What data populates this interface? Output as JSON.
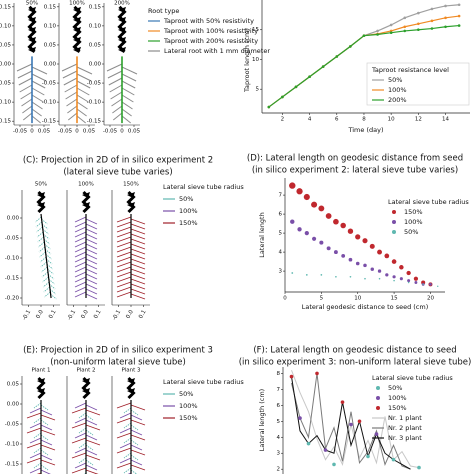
{
  "chart_data": [
    {
      "type": "roots",
      "titles": [
        "50%",
        "100%",
        "200%"
      ],
      "xlim": [
        -0.075,
        0.075
      ],
      "xticks": [
        -0.05,
        0,
        0.05
      ],
      "ylim": [
        -0.16,
        0.16
      ],
      "yticks": [
        0.15,
        {
          "value": 0.1,
          "label": "0.10"
        },
        0.05,
        {
          "value": 0,
          "label": "0.00"
        },
        -0.05,
        {
          "value": -0.1,
          "label": "-0.10"
        },
        -0.15
      ],
      "legend_title": "Root type",
      "series": [
        {
          "name": "Taproot with 50% resistivity",
          "color": "#3a78b5"
        },
        {
          "name": "Taproot with 100% resistivity",
          "color": "#f08a24"
        },
        {
          "name": "Taproot with 200% resistivity",
          "color": "#2ca02c"
        },
        {
          "name": "Lateral root with 1 mm diameter",
          "color": "#8c8c8c"
        }
      ]
    },
    {
      "type": "line",
      "xlabel": "Time (day)",
      "ylabel": "Taproot length (cm)",
      "legend_title": "Taproot resistance level",
      "x": [
        1,
        2,
        3,
        4,
        5,
        6,
        7,
        8,
        9,
        10,
        11,
        12,
        13,
        14,
        15
      ],
      "xlim": [
        0.5,
        15.8
      ],
      "xticks": [
        2,
        4,
        6,
        8,
        10,
        12,
        14
      ],
      "ylim": [
        1,
        20
      ],
      "yticks": [
        5,
        10,
        15
      ],
      "series": [
        {
          "name": "50%",
          "color": "#a0a0a0",
          "values": [
            2,
            3.7,
            5.4,
            7.1,
            8.8,
            10.5,
            12.2,
            14,
            14.8,
            15.8,
            17,
            17.8,
            18.5,
            19,
            19.2
          ]
        },
        {
          "name": "100%",
          "color": "#f08a24",
          "values": [
            2,
            3.7,
            5.4,
            7.1,
            8.8,
            10.5,
            12.2,
            14,
            14.3,
            14.8,
            15.5,
            16,
            16.5,
            17,
            17.3
          ]
        },
        {
          "name": "200%",
          "color": "#2ca02c",
          "values": [
            2,
            3.7,
            5.4,
            7.1,
            8.8,
            10.5,
            12.2,
            14,
            14.2,
            14.5,
            14.8,
            15,
            15.2,
            15.5,
            15.7
          ]
        }
      ]
    },
    {
      "type": "roots2d",
      "title": [
        "(C): Projection in 2D of in silico experiment 2",
        "(lateral sieve tube varies)"
      ],
      "titles": [
        "50%",
        "100%",
        "150%"
      ],
      "xlim": [
        -0.15,
        0.15
      ],
      "xticks": [
        -0.1,
        {
          "value": 0,
          "label": "0.0"
        },
        0.1
      ],
      "ylim": [
        -0.2175,
        0.07
      ],
      "yticks": [
        {
          "value": 0,
          "label": "0.00"
        },
        -0.05,
        {
          "value": -0.1,
          "label": "-0.10"
        },
        -0.15,
        {
          "value": -0.2,
          "label": "-0.20"
        }
      ],
      "legend_title": "Lateral sieve tube radius",
      "series": [
        {
          "name": "50%",
          "color": "#5fb8b0"
        },
        {
          "name": "100%",
          "color": "#7a4fa8"
        },
        {
          "name": "150%",
          "color": "#a0202a"
        }
      ]
    },
    {
      "type": "scatter",
      "title": [
        "(D): Lateral length on geodesic distance from seed",
        "(in silico experiment 2: lateral sieve tube varies)"
      ],
      "xlabel": "Lateral geodesic distance to seed (cm)",
      "ylabel": "Lateral length",
      "xlim": [
        0,
        22
      ],
      "xticks": [
        0,
        5,
        10,
        15,
        20
      ],
      "ylim": [
        1.9,
        7.9
      ],
      "yticks": [
        3,
        4,
        5,
        6,
        7
      ],
      "legend_title": "Lateral sieve tube radius",
      "series": [
        {
          "name": "150%",
          "color": "#c0282e",
          "x": [
            1,
            2,
            3,
            4,
            5,
            6,
            7,
            8,
            9,
            10,
            11,
            12,
            13,
            14,
            15,
            16,
            17,
            18,
            19,
            20
          ],
          "values": [
            7.5,
            7.2,
            6.9,
            6.5,
            6.3,
            5.9,
            5.6,
            5.4,
            5.1,
            4.8,
            4.6,
            4.3,
            4.0,
            3.8,
            3.5,
            3.2,
            2.9,
            2.6,
            2.4,
            2.3
          ]
        },
        {
          "name": "100%",
          "color": "#7a4fa8",
          "x": [
            1,
            2,
            3,
            4,
            5,
            6,
            7,
            8,
            9,
            10,
            11,
            12,
            13,
            14,
            15,
            16,
            17,
            18,
            19,
            20
          ],
          "values": [
            5.6,
            5.2,
            5.0,
            4.7,
            4.5,
            4.2,
            4.0,
            3.8,
            3.6,
            3.4,
            3.3,
            3.1,
            3.0,
            2.8,
            2.7,
            2.6,
            2.5,
            2.4,
            2.3,
            2.3
          ]
        },
        {
          "name": "50%",
          "color": "#5fb8b0",
          "x": [
            1,
            3,
            5,
            7,
            9,
            11,
            13,
            15,
            17,
            19,
            21
          ],
          "values": [
            2.9,
            2.8,
            2.8,
            2.7,
            2.7,
            2.6,
            2.6,
            2.5,
            2.4,
            2.3,
            2.2
          ]
        }
      ]
    },
    {
      "type": "roots2d",
      "title": [
        "(E): Projection in 2D of in silico experiment 3",
        "(non-uniform lateral sieve tube)"
      ],
      "titles": [
        "Plant 1",
        "Plant 2",
        "Plant 3"
      ],
      "xlim": [
        -0.15,
        0.15
      ],
      "xticks": [],
      "ylim": [
        -0.2175,
        0.07
      ],
      "yticks": [
        0.05,
        {
          "value": 0,
          "label": "0.00"
        },
        -0.05,
        {
          "value": -0.1,
          "label": "-0.10"
        },
        -0.15
      ],
      "legend_title": "Lateral sieve tube radius",
      "series": [
        {
          "name": "50%",
          "color": "#5fb8b0"
        },
        {
          "name": "100%",
          "color": "#7a4fa8"
        },
        {
          "name": "150%",
          "color": "#a0202a"
        }
      ]
    },
    {
      "type": "multiline",
      "title": [
        "(F): Lateral length on geodesic distance to seed",
        "(in silico experiment 3: non-uniform lateral sieve tube)"
      ],
      "ylabel": "Lateral length (cm)",
      "xlim": [
        0,
        22
      ],
      "ylim": [
        1.7,
        8.4
      ],
      "yticks": [
        2,
        3,
        4,
        5,
        6,
        7,
        8
      ],
      "legend_title": "Lateral sieve tube radius",
      "marker_series": [
        {
          "name": "50%",
          "color": "#5fb8b0",
          "x": [
            3,
            6,
            10,
            13,
            16
          ],
          "values": [
            3.6,
            2.3,
            2.8,
            2.6,
            2.1
          ]
        },
        {
          "name": "100%",
          "color": "#7a4fa8",
          "x": [
            2,
            5,
            8,
            11
          ],
          "values": [
            5.2,
            3.2,
            4.8,
            4.2
          ]
        },
        {
          "name": "150%",
          "color": "#c0282e",
          "x": [
            1,
            4,
            7,
            9
          ],
          "values": [
            7.8,
            8.0,
            6.2,
            5.0
          ]
        }
      ],
      "series": [
        {
          "name": "Nr. 1 plant",
          "color": "#c8c8c8",
          "x": [
            1,
            2,
            3,
            4,
            5,
            6,
            7,
            8,
            9,
            10,
            11,
            12,
            13,
            14,
            15,
            16
          ],
          "values": [
            8.2,
            6.8,
            5.6,
            3.9,
            2.6,
            3.4,
            2.3,
            4.8,
            2.7,
            3.8,
            2.4,
            5.3,
            2.6,
            3.1,
            2.2,
            2.1
          ]
        },
        {
          "name": "Nr. 2 plant",
          "color": "#7a7a7a",
          "x": [
            1,
            2,
            3,
            4,
            5,
            6,
            7,
            8,
            9,
            10,
            11,
            12,
            13,
            14,
            15
          ],
          "values": [
            7.4,
            5.2,
            4.0,
            8.0,
            3.3,
            4.6,
            2.5,
            5.6,
            2.4,
            3.1,
            4.4,
            2.3,
            3.5,
            2.2,
            2.0
          ]
        },
        {
          "name": "Nr. 3 plant",
          "color": "#111111",
          "x": [
            1,
            2,
            3,
            4,
            5,
            6,
            7,
            8,
            9,
            10,
            11,
            12,
            13,
            14,
            15
          ],
          "values": [
            7.8,
            4.4,
            3.6,
            4.1,
            3.2,
            3.0,
            6.2,
            3.5,
            5.0,
            2.8,
            4.2,
            3.0,
            2.6,
            2.3,
            2.0
          ]
        }
      ]
    }
  ]
}
